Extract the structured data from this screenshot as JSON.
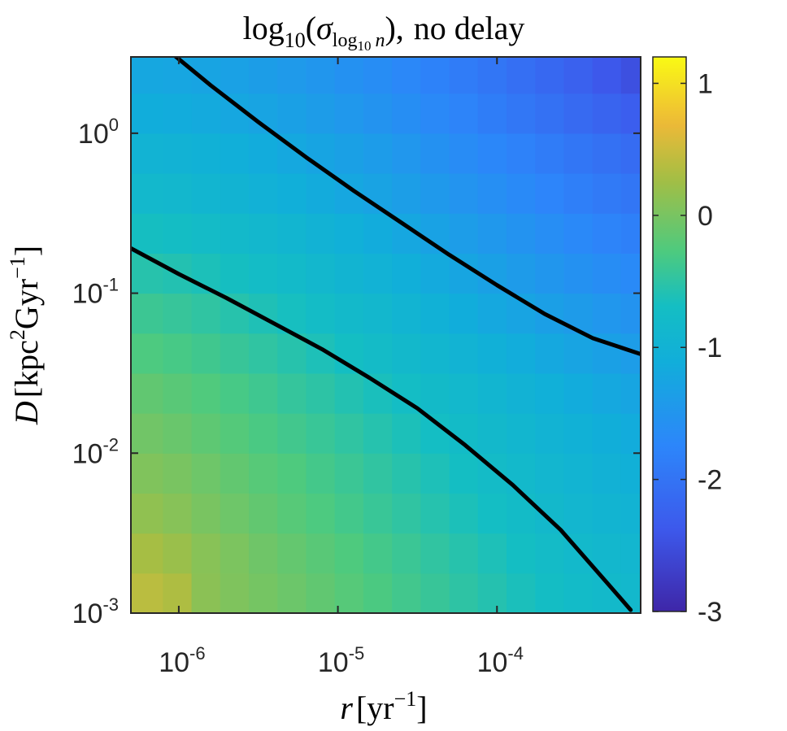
{
  "chart_data": {
    "type": "heatmap",
    "title": {
      "log_base": "log",
      "log_sub": "10",
      "open": "(",
      "sigma": "σ",
      "sigma_sub_log": "log",
      "sigma_sub_base": "10",
      "sigma_sub_var": "n",
      "close": "),",
      "rest": "no delay"
    },
    "xlabel": {
      "var": "r",
      "unit_open": "[yr",
      "exp": "−1",
      "unit_close": "]"
    },
    "ylabel": {
      "var": "D",
      "unit_open": "[kpc",
      "exp1": "2",
      "mid": "Gyr",
      "exp2": "−1",
      "unit_close": "]"
    },
    "x_scale": "log",
    "y_scale": "log",
    "xlim": [
      5e-07,
      0.0008
    ],
    "ylim": [
      0.001,
      3
    ],
    "x_ticks": [
      {
        "value": 1e-06,
        "base": "10",
        "exp": "-6"
      },
      {
        "value": 1e-05,
        "base": "10",
        "exp": "-5"
      },
      {
        "value": 0.0001,
        "base": "10",
        "exp": "-4"
      }
    ],
    "y_ticks": [
      {
        "value": 0.001,
        "base": "10",
        "exp": "-3"
      },
      {
        "value": 0.01,
        "base": "10",
        "exp": "-2"
      },
      {
        "value": 0.1,
        "base": "10",
        "exp": "-1"
      },
      {
        "value": 1,
        "base": "10",
        "exp": "0"
      }
    ],
    "colorbar": {
      "colormap": "parula",
      "clim": [
        -3,
        1.2
      ],
      "ticks": [
        {
          "value": -3,
          "label": "-3"
        },
        {
          "value": -2,
          "label": "-2"
        },
        {
          "value": -1,
          "label": "-1"
        },
        {
          "value": 0,
          "label": "0"
        },
        {
          "value": 1,
          "label": "1"
        }
      ]
    },
    "grid": {
      "x_edges_log10": [
        -6.3,
        -6.1,
        -5.92,
        -5.74,
        -5.56,
        -5.38,
        -5.2,
        -5.02,
        -4.84,
        -4.66,
        -4.48,
        -4.3,
        -4.12,
        -3.94,
        -3.76,
        -3.58,
        -3.4,
        -3.22,
        -3.1
      ],
      "y_edges_log10": [
        -3.0,
        -2.75,
        -2.5,
        -2.25,
        -2.0,
        -1.75,
        -1.5,
        -1.25,
        -1.0,
        -0.75,
        -0.5,
        -0.25,
        0.0,
        0.25,
        0.48
      ],
      "values": [
        [
          0.4,
          0.33,
          0.12,
          0.04,
          -0.02,
          -0.08,
          -0.15,
          -0.22,
          -0.29,
          -0.36,
          -0.43,
          -0.5,
          -0.57,
          -0.64,
          -0.71,
          -0.78,
          -0.82,
          -0.86
        ],
        [
          0.29,
          0.21,
          0.1,
          0.02,
          -0.06,
          -0.13,
          -0.2,
          -0.27,
          -0.34,
          -0.41,
          -0.48,
          -0.55,
          -0.62,
          -0.69,
          -0.76,
          -0.83,
          -0.88,
          -0.9
        ],
        [
          0.15,
          0.09,
          0.0,
          -0.07,
          -0.14,
          -0.21,
          -0.28,
          -0.35,
          -0.42,
          -0.49,
          -0.56,
          -0.63,
          -0.7,
          -0.77,
          -0.84,
          -0.9,
          -0.95,
          -0.98
        ],
        [
          0.05,
          0.0,
          -0.07,
          -0.14,
          -0.21,
          -0.27,
          -0.34,
          -0.41,
          -0.48,
          -0.55,
          -0.62,
          -0.69,
          -0.76,
          -0.83,
          -0.9,
          -0.96,
          -1.02,
          -1.05
        ],
        [
          -0.05,
          -0.1,
          -0.17,
          -0.23,
          -0.3,
          -0.36,
          -0.42,
          -0.49,
          -0.56,
          -0.63,
          -0.7,
          -0.77,
          -0.84,
          -0.91,
          -0.98,
          -1.04,
          -1.1,
          -1.14
        ],
        [
          -0.15,
          -0.2,
          -0.26,
          -0.32,
          -0.38,
          -0.45,
          -0.51,
          -0.58,
          -0.65,
          -0.72,
          -0.79,
          -0.86,
          -0.93,
          -1.0,
          -1.07,
          -1.14,
          -1.2,
          -1.25
        ],
        [
          -0.28,
          -0.32,
          -0.37,
          -0.43,
          -0.49,
          -0.55,
          -0.62,
          -0.69,
          -0.76,
          -0.84,
          -0.91,
          -0.99,
          -1.06,
          -1.13,
          -1.2,
          -1.27,
          -1.33,
          -1.38
        ],
        [
          -0.4,
          -0.44,
          -0.49,
          -0.55,
          -0.61,
          -0.67,
          -0.74,
          -0.81,
          -0.88,
          -0.96,
          -1.04,
          -1.12,
          -1.2,
          -1.27,
          -1.34,
          -1.41,
          -1.48,
          -1.53
        ],
        [
          -0.55,
          -0.58,
          -0.63,
          -0.68,
          -0.74,
          -0.8,
          -0.87,
          -0.94,
          -1.01,
          -1.09,
          -1.17,
          -1.25,
          -1.33,
          -1.41,
          -1.49,
          -1.56,
          -1.63,
          -1.68
        ],
        [
          -0.68,
          -0.71,
          -0.76,
          -0.81,
          -0.87,
          -0.93,
          -1.0,
          -1.07,
          -1.14,
          -1.22,
          -1.3,
          -1.38,
          -1.46,
          -1.54,
          -1.62,
          -1.7,
          -1.77,
          -1.82
        ],
        [
          -0.85,
          -0.88,
          -0.92,
          -0.97,
          -1.03,
          -1.09,
          -1.15,
          -1.22,
          -1.29,
          -1.36,
          -1.44,
          -1.52,
          -1.6,
          -1.68,
          -1.76,
          -1.84,
          -1.91,
          -1.96
        ],
        [
          -0.98,
          -1.0,
          -1.04,
          -1.09,
          -1.14,
          -1.2,
          -1.26,
          -1.33,
          -1.4,
          -1.48,
          -1.56,
          -1.64,
          -1.72,
          -1.8,
          -1.88,
          -1.96,
          -2.04,
          -2.1
        ],
        [
          -1.12,
          -1.14,
          -1.17,
          -1.22,
          -1.27,
          -1.33,
          -1.39,
          -1.46,
          -1.53,
          -1.61,
          -1.69,
          -1.77,
          -1.86,
          -1.95,
          -2.04,
          -2.13,
          -2.22,
          -2.3
        ],
        [
          -1.22,
          -1.24,
          -1.27,
          -1.32,
          -1.37,
          -1.43,
          -1.49,
          -1.56,
          -1.63,
          -1.71,
          -1.79,
          -1.88,
          -1.97,
          -2.06,
          -2.16,
          -2.26,
          -2.38,
          -2.48
        ]
      ]
    },
    "contours": [
      {
        "points": [
          [
            -6.02,
            0.48
          ],
          [
            -5.8,
            0.3
          ],
          [
            -5.5,
            0.07
          ],
          [
            -5.2,
            -0.15
          ],
          [
            -4.9,
            -0.36
          ],
          [
            -4.6,
            -0.56
          ],
          [
            -4.3,
            -0.76
          ],
          [
            -4.0,
            -0.95
          ],
          [
            -3.7,
            -1.13
          ],
          [
            -3.4,
            -1.28
          ],
          [
            -3.1,
            -1.38
          ]
        ]
      },
      {
        "points": [
          [
            -6.3,
            -0.72
          ],
          [
            -6.0,
            -0.88
          ],
          [
            -5.7,
            -1.03
          ],
          [
            -5.4,
            -1.19
          ],
          [
            -5.1,
            -1.35
          ],
          [
            -4.8,
            -1.53
          ],
          [
            -4.5,
            -1.72
          ],
          [
            -4.2,
            -1.95
          ],
          [
            -3.9,
            -2.2
          ],
          [
            -3.6,
            -2.48
          ],
          [
            -3.3,
            -2.82
          ],
          [
            -3.16,
            -2.98
          ]
        ]
      }
    ]
  }
}
